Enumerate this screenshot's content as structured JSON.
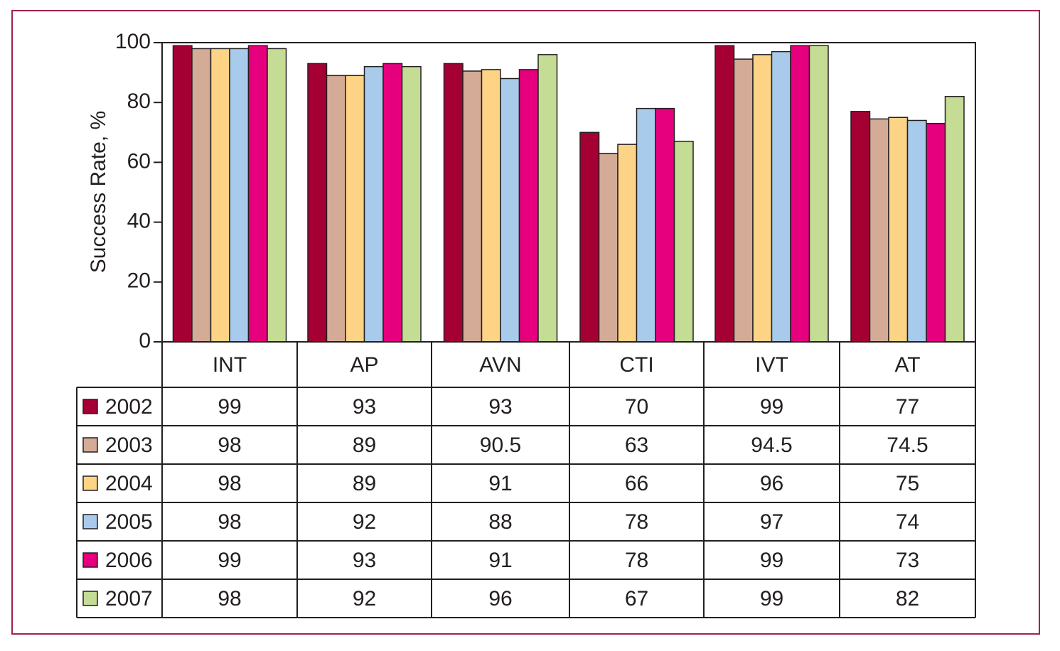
{
  "chart_data": {
    "type": "bar",
    "title": "",
    "xlabel": "",
    "ylabel": "Success Rate, %",
    "ylim": [
      0,
      100
    ],
    "yticks": [
      0,
      20,
      40,
      60,
      80,
      100
    ],
    "grid": false,
    "legend": "table-left",
    "categories": [
      "INT",
      "AP",
      "AVN",
      "CTI",
      "IVT",
      "AT"
    ],
    "series": [
      {
        "name": "2002",
        "color": "#a50034",
        "values": [
          99,
          93,
          93,
          70,
          99,
          77
        ],
        "labels": [
          "99",
          "93",
          "93",
          "70",
          "99",
          "77"
        ]
      },
      {
        "name": "2003",
        "color": "#d3ab96",
        "values": [
          98,
          89,
          90.5,
          63,
          94.5,
          74.5
        ],
        "labels": [
          "98",
          "89",
          "90.5",
          "63",
          "94.5",
          "74.5"
        ]
      },
      {
        "name": "2004",
        "color": "#fdd385",
        "values": [
          98,
          89,
          91,
          66,
          96,
          75
        ],
        "labels": [
          "98",
          "89",
          "91",
          "66",
          "96",
          "75"
        ]
      },
      {
        "name": "2005",
        "color": "#a9cbeb",
        "values": [
          98,
          92,
          88,
          78,
          97,
          74
        ],
        "labels": [
          "98",
          "92",
          "88",
          "78",
          "97",
          "74"
        ]
      },
      {
        "name": "2006",
        "color": "#e6007e",
        "values": [
          99,
          93,
          91,
          78,
          99,
          73
        ],
        "labels": [
          "99",
          "93",
          "91",
          "78",
          "99",
          "73"
        ]
      },
      {
        "name": "2007",
        "color": "#c4dc93",
        "values": [
          98,
          92,
          96,
          67,
          99,
          82
        ],
        "labels": [
          "98",
          "92",
          "96",
          "67",
          "99",
          "82"
        ]
      }
    ]
  },
  "colors": {
    "frame": "#a0234f",
    "ink": "#231f20"
  }
}
